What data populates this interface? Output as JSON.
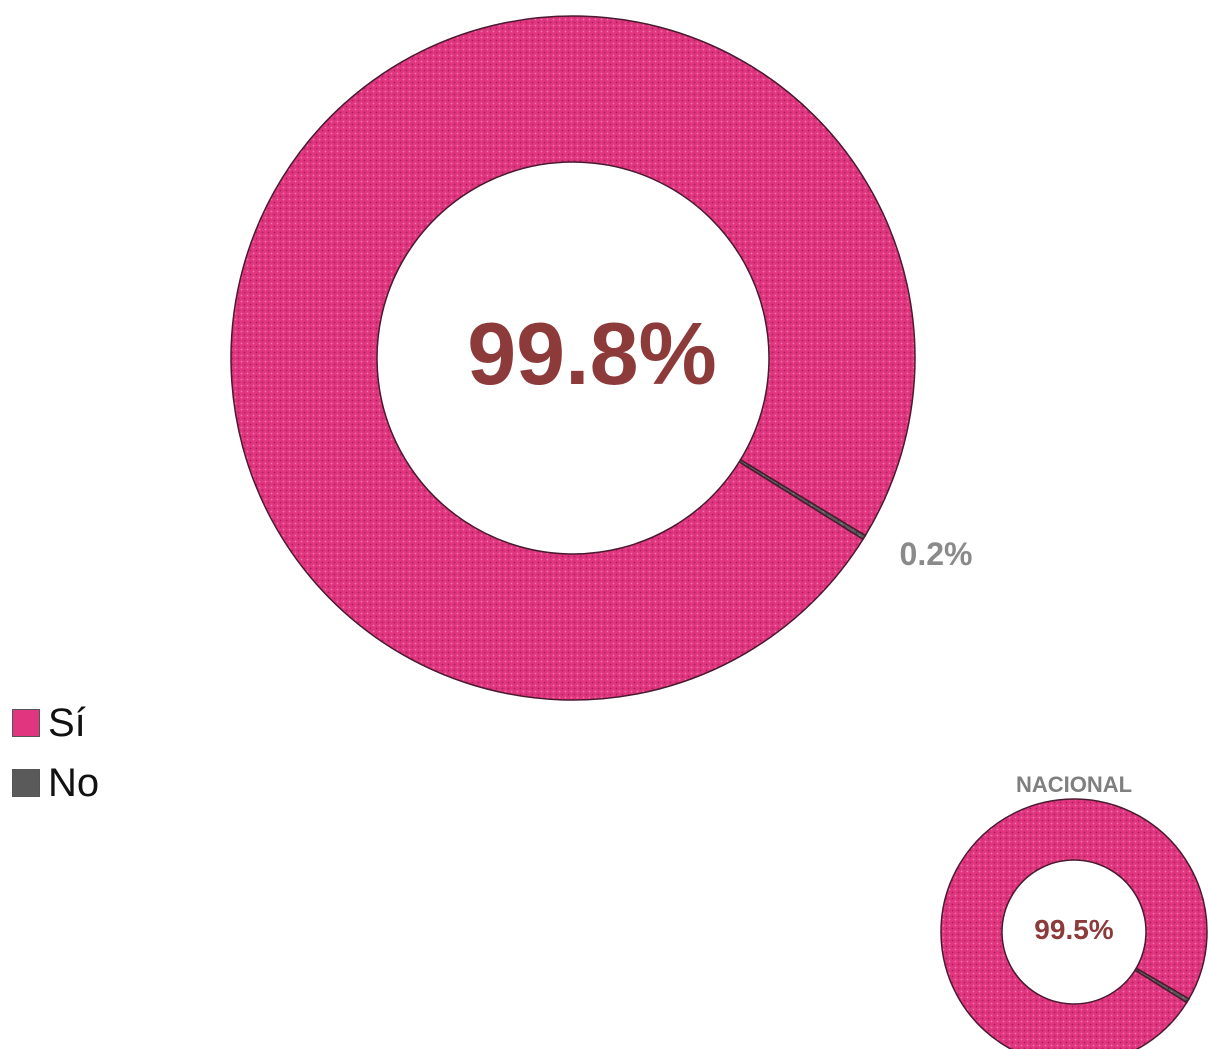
{
  "chart_data": [
    {
      "type": "pie",
      "variant": "donut",
      "categories": [
        "Sí",
        "No"
      ],
      "values": [
        99.8,
        0.2
      ],
      "center_label": "99.8%",
      "data_labels": [
        "",
        "0.2%"
      ],
      "colors": [
        "#e0357f",
        "#5a5a5a"
      ],
      "legend": {
        "placement": "left-bottom",
        "entries": [
          "Sí",
          "No"
        ]
      }
    },
    {
      "type": "pie",
      "variant": "donut",
      "title": "NACIONAL",
      "categories": [
        "Sí",
        "No"
      ],
      "values": [
        99.5,
        0.5
      ],
      "center_label": "99.5%",
      "colors": [
        "#e0357f",
        "#5a5a5a"
      ]
    }
  ]
}
